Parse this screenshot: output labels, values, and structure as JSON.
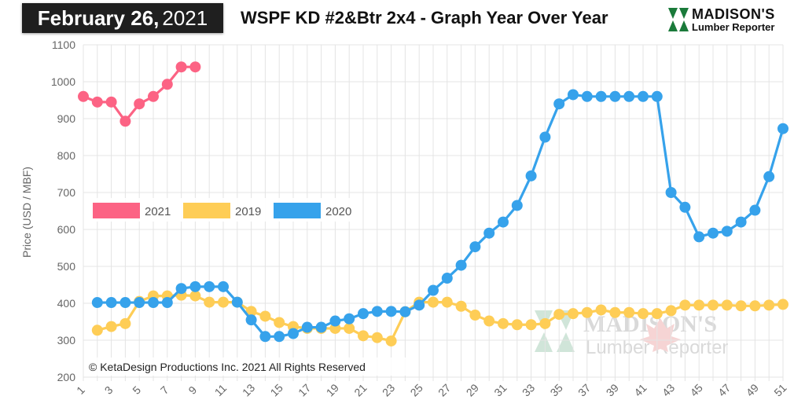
{
  "header": {
    "date_bold": "February 26,",
    "date_year": "2021",
    "title": "WSPF KD #2&Btr 2x4 - Graph Year Over Year",
    "logo_name": "MADISON'S",
    "logo_sub": "Lumber Reporter"
  },
  "watermark": {
    "name": "MADISON'S",
    "sub": "Lumber Reporter"
  },
  "copyright": "© KetaDesign Productions Inc. 2021 All Rights Reserved",
  "colors": {
    "s2021": "#fc6384",
    "s2019": "#fecd56",
    "s2020": "#36a2eb"
  },
  "chart_data": {
    "type": "line",
    "ylabel": "Price (USD / MBF)",
    "xlabel": "",
    "ylim": [
      200,
      1100
    ],
    "yticks": [
      200,
      300,
      400,
      500,
      600,
      700,
      800,
      900,
      1000,
      1100
    ],
    "xlim": [
      1,
      51
    ],
    "xticks": [
      1,
      3,
      5,
      7,
      9,
      11,
      13,
      15,
      17,
      19,
      21,
      23,
      25,
      27,
      29,
      31,
      33,
      35,
      37,
      39,
      41,
      43,
      45,
      47,
      49,
      51
    ],
    "grid": true,
    "legend_position": "left-middle",
    "series": [
      {
        "name": "2021",
        "color": "#fc6384",
        "x": [
          1,
          2,
          3,
          4,
          5,
          6,
          7,
          8,
          9
        ],
        "values": [
          960,
          945,
          945,
          893,
          940,
          960,
          993,
          1040,
          1040
        ]
      },
      {
        "name": "2019",
        "color": "#fecd56",
        "x": [
          2,
          3,
          4,
          5,
          6,
          7,
          8,
          9,
          10,
          11,
          12,
          13,
          14,
          15,
          16,
          17,
          18,
          19,
          20,
          21,
          22,
          23,
          24,
          25,
          26,
          27,
          28,
          29,
          30,
          31,
          32,
          33,
          34,
          35,
          36,
          37,
          38,
          39,
          40,
          41,
          42,
          43,
          44,
          45,
          46,
          47,
          48,
          49,
          50,
          51
        ],
        "values": [
          327,
          337,
          345,
          405,
          420,
          420,
          422,
          420,
          403,
          403,
          403,
          378,
          365,
          348,
          337,
          332,
          332,
          332,
          332,
          312,
          307,
          298,
          377,
          403,
          403,
          403,
          392,
          368,
          352,
          345,
          342,
          342,
          345,
          370,
          372,
          375,
          382,
          375,
          375,
          372,
          372,
          380,
          395,
          395,
          395,
          395,
          393,
          393,
          395,
          397
        ]
      },
      {
        "name": "2020",
        "color": "#36a2eb",
        "x": [
          2,
          3,
          4,
          5,
          6,
          7,
          8,
          9,
          10,
          11,
          12,
          13,
          14,
          15,
          16,
          17,
          18,
          19,
          20,
          21,
          22,
          23,
          24,
          25,
          26,
          27,
          28,
          29,
          30,
          31,
          32,
          33,
          34,
          35,
          36,
          37,
          38,
          39,
          40,
          41,
          42,
          43,
          44,
          45,
          46,
          47,
          48,
          49,
          50,
          51
        ],
        "values": [
          402,
          402,
          402,
          402,
          402,
          402,
          440,
          445,
          445,
          445,
          403,
          355,
          310,
          310,
          318,
          335,
          335,
          352,
          358,
          372,
          378,
          378,
          377,
          395,
          435,
          468,
          503,
          553,
          590,
          620,
          665,
          745,
          850,
          940,
          965,
          960,
          960,
          960,
          960,
          960,
          960,
          700,
          660,
          580,
          590,
          595,
          620,
          652,
          743,
          873
        ]
      }
    ]
  }
}
